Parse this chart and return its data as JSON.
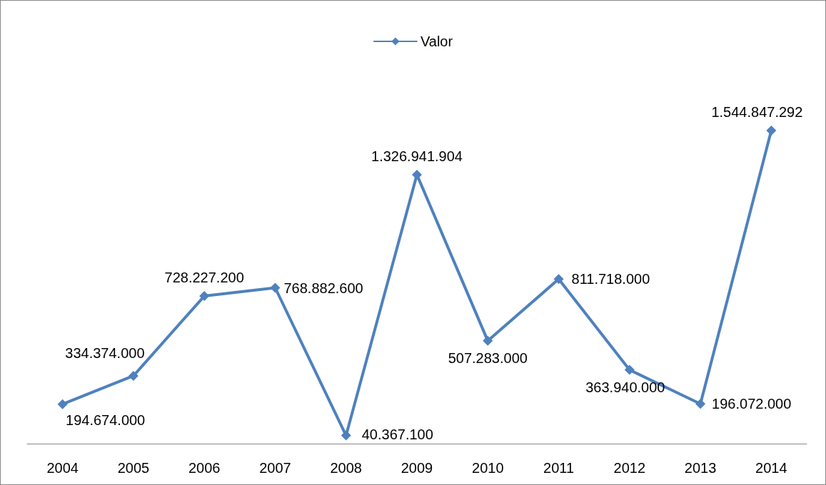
{
  "chart_data": {
    "type": "line",
    "categories": [
      "2004",
      "2005",
      "2006",
      "2007",
      "2008",
      "2009",
      "2010",
      "2011",
      "2012",
      "2013",
      "2014"
    ],
    "series": [
      {
        "name": "Valor",
        "color": "#4f81bd",
        "values": [
          194674000,
          334374000,
          728227200,
          768882600,
          40367100,
          1326941904,
          507283000,
          811718000,
          363940000,
          196072000,
          1544847292
        ],
        "value_labels": [
          "194.674.000",
          "334.374.000",
          "728.227.200",
          "768.882.600",
          "40.367.100",
          "1.326.941.904",
          "507.283.000",
          "811.718.000",
          "363.940.000",
          "196.072.000",
          "1.544.847.292"
        ]
      }
    ],
    "marker": "diamond",
    "line_style": "solid",
    "legend": "top"
  }
}
